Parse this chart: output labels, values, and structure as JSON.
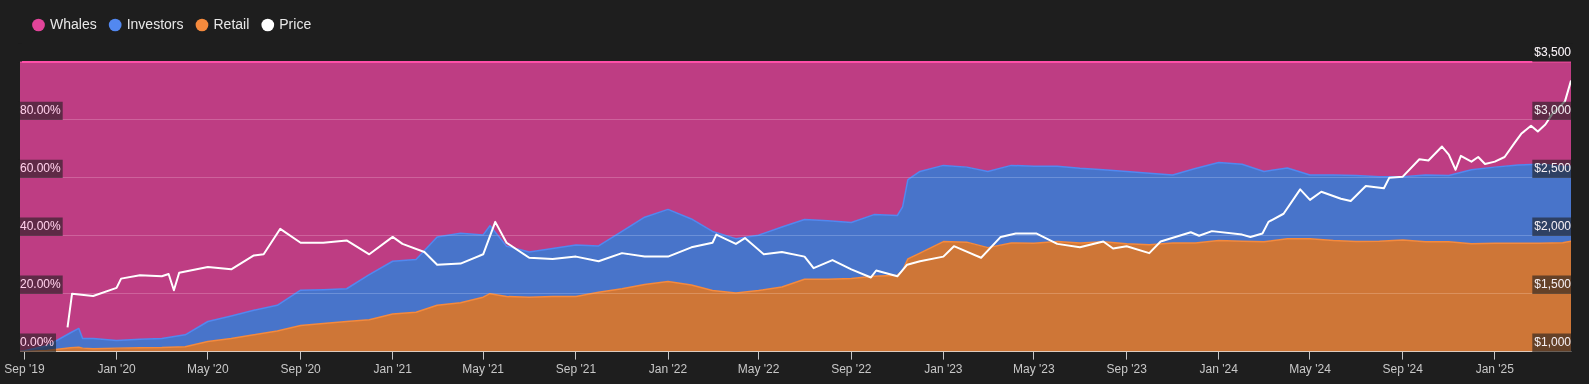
{
  "chart_data": {
    "type": "area",
    "stacked": true,
    "legend": "top left",
    "grid": "y",
    "marker": "none",
    "line_style": "solid",
    "xlim": [
      "2019-08-26",
      "2025-04-12"
    ],
    "xticks": [
      {
        "value": "2019-09-01",
        "label": "Sep '19"
      },
      {
        "value": "2020-01-01",
        "label": "Jan '20"
      },
      {
        "value": "2020-05-01",
        "label": "May '20"
      },
      {
        "value": "2020-09-01",
        "label": "Sep '20"
      },
      {
        "value": "2021-01-01",
        "label": "Jan '21"
      },
      {
        "value": "2021-05-01",
        "label": "May '21"
      },
      {
        "value": "2021-09-01",
        "label": "Sep '21"
      },
      {
        "value": "2022-01-01",
        "label": "Jan '22"
      },
      {
        "value": "2022-05-01",
        "label": "May '22"
      },
      {
        "value": "2022-09-01",
        "label": "Sep '22"
      },
      {
        "value": "2023-01-01",
        "label": "Jan '23"
      },
      {
        "value": "2023-05-01",
        "label": "May '23"
      },
      {
        "value": "2023-09-01",
        "label": "Sep '23"
      },
      {
        "value": "2024-01-01",
        "label": "Jan '24"
      },
      {
        "value": "2024-05-01",
        "label": "May '24"
      },
      {
        "value": "2024-09-01",
        "label": "Sep '24"
      },
      {
        "value": "2025-01-01",
        "label": "Jan '25"
      }
    ],
    "ylim": [
      0,
      100
    ],
    "yticks": [
      {
        "value": 0,
        "label": "0.00%"
      },
      {
        "value": 20,
        "label": "20.00%"
      },
      {
        "value": 40,
        "label": "40.00%"
      },
      {
        "value": 60,
        "label": "60.00%"
      },
      {
        "value": 80,
        "label": "80.00%"
      },
      {
        "value": 100,
        "label": null
      }
    ],
    "y2lim": [
      1000,
      3500
    ],
    "y2ticks": [
      {
        "value": 1000,
        "label": "$1,000"
      },
      {
        "value": 1500,
        "label": "$1,500"
      },
      {
        "value": 2000,
        "label": "$2,000"
      },
      {
        "value": 2500,
        "label": "$2,500"
      },
      {
        "value": 3000,
        "label": "$3,000"
      },
      {
        "value": 3500,
        "label": "$3,500"
      }
    ],
    "x": [
      "2019-08-26",
      "2019-09-01",
      "2019-10-01",
      "2019-11-01",
      "2019-11-12",
      "2019-11-17",
      "2019-12-01",
      "2020-01-01",
      "2020-02-01",
      "2020-03-01",
      "2020-04-01",
      "2020-05-01",
      "2020-06-01",
      "2020-07-01",
      "2020-08-01",
      "2020-09-01",
      "2020-10-01",
      "2020-11-01",
      "2020-12-01",
      "2021-01-01",
      "2021-02-01",
      "2021-03-01",
      "2021-04-01",
      "2021-05-01",
      "2021-05-10",
      "2021-06-01",
      "2021-07-01",
      "2021-08-01",
      "2021-09-01",
      "2021-10-01",
      "2021-11-01",
      "2021-12-01",
      "2022-01-01",
      "2022-02-01",
      "2022-03-01",
      "2022-04-01",
      "2022-05-01",
      "2022-06-01",
      "2022-07-01",
      "2022-08-01",
      "2022-09-01",
      "2022-10-01",
      "2022-11-01",
      "2022-11-08",
      "2022-11-15",
      "2022-12-01",
      "2023-01-01",
      "2023-02-01",
      "2023-03-01",
      "2023-04-01",
      "2023-05-01",
      "2023-06-01",
      "2023-07-01",
      "2023-08-01",
      "2023-09-01",
      "2023-10-01",
      "2023-11-01",
      "2023-12-01",
      "2024-01-01",
      "2024-02-01",
      "2024-03-01",
      "2024-04-01",
      "2024-05-01",
      "2024-06-01",
      "2024-07-01",
      "2024-08-01",
      "2024-09-01",
      "2024-10-01",
      "2024-11-01",
      "2024-12-01",
      "2025-01-01",
      "2025-02-01",
      "2025-03-01",
      "2025-04-01",
      "2025-04-12"
    ],
    "series": [
      {
        "name": "Retail",
        "color": "#f58a3d",
        "values": [
          0,
          0,
          0.4,
          1.3,
          1.5,
          1.2,
          1,
          1.2,
          1.3,
          1.4,
          1.7,
          3.5,
          4.5,
          5.8,
          7.1,
          9,
          9.7,
          10.4,
          11,
          13,
          13.6,
          16,
          16.9,
          18.8,
          20,
          19,
          18.8,
          19,
          19,
          20.5,
          21.7,
          23.2,
          24.2,
          23,
          21.1,
          20.2,
          21.1,
          22.3,
          25,
          25,
          25.2,
          26,
          26.4,
          28,
          32,
          34,
          38,
          37.8,
          35.9,
          37.5,
          37.4,
          38,
          37.5,
          37.9,
          37.2,
          36.9,
          37.5,
          37.5,
          38.4,
          38.1,
          37.9,
          39,
          39,
          38.4,
          38,
          38.1,
          38.5,
          37.9,
          37.9,
          37.2,
          37.4,
          37.4,
          37.4,
          37.6,
          38.1
        ]
      },
      {
        "name": "Investors",
        "color": "#5288f0",
        "values": [
          0,
          0.3,
          1.6,
          5.2,
          6.5,
          3.3,
          3.5,
          2.6,
          3,
          3.1,
          4.1,
          6.9,
          7.8,
          8.5,
          8.9,
          12.2,
          11.7,
          11.3,
          15.6,
          18.2,
          18.2,
          23.6,
          24,
          21.5,
          23.5,
          17.4,
          15.6,
          16.6,
          17.8,
          16,
          19.8,
          23.2,
          24.9,
          22.8,
          20.4,
          18.8,
          19.1,
          20.7,
          20.6,
          20.2,
          19.4,
          21.3,
          20.6,
          22,
          27.4,
          28.2,
          26.3,
          25.9,
          26.3,
          26.8,
          26.6,
          26,
          25.8,
          24.9,
          25,
          24.7,
          23.5,
          25.7,
          26.9,
          26.6,
          24.3,
          24.4,
          22,
          22.6,
          22.8,
          22.3,
          21.9,
          23.1,
          22.9,
          25.6,
          26.3,
          27,
          27.3,
          26.4,
          25.9
        ]
      },
      {
        "name": "Whales",
        "color": "#e2449a",
        "values": [
          100,
          99.7,
          98,
          93.5,
          92,
          95.5,
          95.5,
          96.2,
          95.7,
          95.5,
          94.2,
          89.6,
          87.7,
          85.7,
          84,
          78.8,
          78.6,
          78.3,
          73.4,
          68.8,
          68.2,
          60.4,
          59.1,
          59.7,
          56.5,
          63.6,
          65.6,
          64.4,
          63.2,
          63.5,
          58.5,
          53.6,
          50.9,
          54.2,
          58.5,
          61,
          59.8,
          57,
          54.4,
          54.8,
          55.4,
          52.7,
          53,
          50,
          40.6,
          37.8,
          35.7,
          36.3,
          37.8,
          35.7,
          36,
          36,
          36.7,
          37.2,
          37.8,
          38.4,
          39,
          36.8,
          34.7,
          35.3,
          37.8,
          36.6,
          39,
          39,
          39.2,
          39.6,
          39.6,
          39,
          39.2,
          37.2,
          36.3,
          35.6,
          35.3,
          36,
          36
        ]
      },
      {
        "name": "Price",
        "type": "line",
        "axis": "y2",
        "color": "#ffffff",
        "x": [
          "2019-10-28",
          "2019-11-03",
          "2019-12-01",
          "2020-01-01",
          "2020-01-07",
          "2020-02-01",
          "2020-03-01",
          "2020-03-10",
          "2020-03-17",
          "2020-03-24",
          "2020-05-01",
          "2020-06-01",
          "2020-07-01",
          "2020-07-14",
          "2020-08-05",
          "2020-09-01",
          "2020-10-01",
          "2020-11-01",
          "2020-12-01",
          "2021-01-01",
          "2021-01-14",
          "2021-02-12",
          "2021-03-01",
          "2021-04-01",
          "2021-05-01",
          "2021-05-17",
          "2021-06-01",
          "2021-07-01",
          "2021-08-01",
          "2021-09-01",
          "2021-10-01",
          "2021-11-01",
          "2021-12-01",
          "2022-01-01",
          "2022-02-01",
          "2022-03-01",
          "2022-03-06",
          "2022-04-01",
          "2022-04-13",
          "2022-05-08",
          "2022-06-01",
          "2022-07-01",
          "2022-07-13",
          "2022-08-07",
          "2022-09-01",
          "2022-09-27",
          "2022-10-04",
          "2022-11-01",
          "2022-11-14",
          "2022-12-01",
          "2023-01-01",
          "2023-01-15",
          "2023-02-20",
          "2023-03-18",
          "2023-04-07",
          "2023-05-04",
          "2023-06-01",
          "2023-07-01",
          "2023-08-01",
          "2023-08-14",
          "2023-09-01",
          "2023-10-01",
          "2023-10-16",
          "2023-11-25",
          "2023-12-06",
          "2023-12-23",
          "2024-02-01",
          "2024-02-12",
          "2024-02-28",
          "2024-03-07",
          "2024-03-27",
          "2024-04-18",
          "2024-05-01",
          "2024-05-16",
          "2024-06-11",
          "2024-06-24",
          "2024-07-14",
          "2024-08-07",
          "2024-08-14",
          "2024-09-01",
          "2024-09-23",
          "2024-10-05",
          "2024-10-23",
          "2024-11-01",
          "2024-11-10",
          "2024-11-17",
          "2024-12-01",
          "2024-12-10",
          "2024-12-19",
          "2025-01-01",
          "2025-01-14",
          "2025-01-27",
          "2025-02-05",
          "2025-02-18",
          "2025-02-27",
          "2025-03-09",
          "2025-03-18",
          "2025-04-04",
          "2025-04-12"
        ],
        "values": [
          1210,
          1500,
          1480,
          1550,
          1630,
          1660,
          1650,
          1670,
          1530,
          1680,
          1730,
          1710,
          1830,
          1840,
          2060,
          1940,
          1940,
          1960,
          1840,
          1990,
          1930,
          1860,
          1750,
          1760,
          1840,
          2120,
          1940,
          1810,
          1800,
          1820,
          1780,
          1850,
          1820,
          1820,
          1900,
          1940,
          2010,
          1930,
          1980,
          1840,
          1860,
          1820,
          1720,
          1790,
          1710,
          1640,
          1700,
          1650,
          1750,
          1780,
          1820,
          1910,
          1810,
          1990,
          2020,
          2020,
          1930,
          1900,
          1950,
          1890,
          1910,
          1850,
          1950,
          2030,
          2000,
          2040,
          2010,
          1990,
          2020,
          2120,
          2190,
          2400,
          2310,
          2380,
          2320,
          2300,
          2430,
          2410,
          2500,
          2510,
          2660,
          2650,
          2770,
          2700,
          2570,
          2690,
          2640,
          2680,
          2620,
          2640,
          2680,
          2800,
          2880,
          2950,
          2900,
          2960,
          3050,
          3160,
          3340
        ]
      }
    ]
  }
}
